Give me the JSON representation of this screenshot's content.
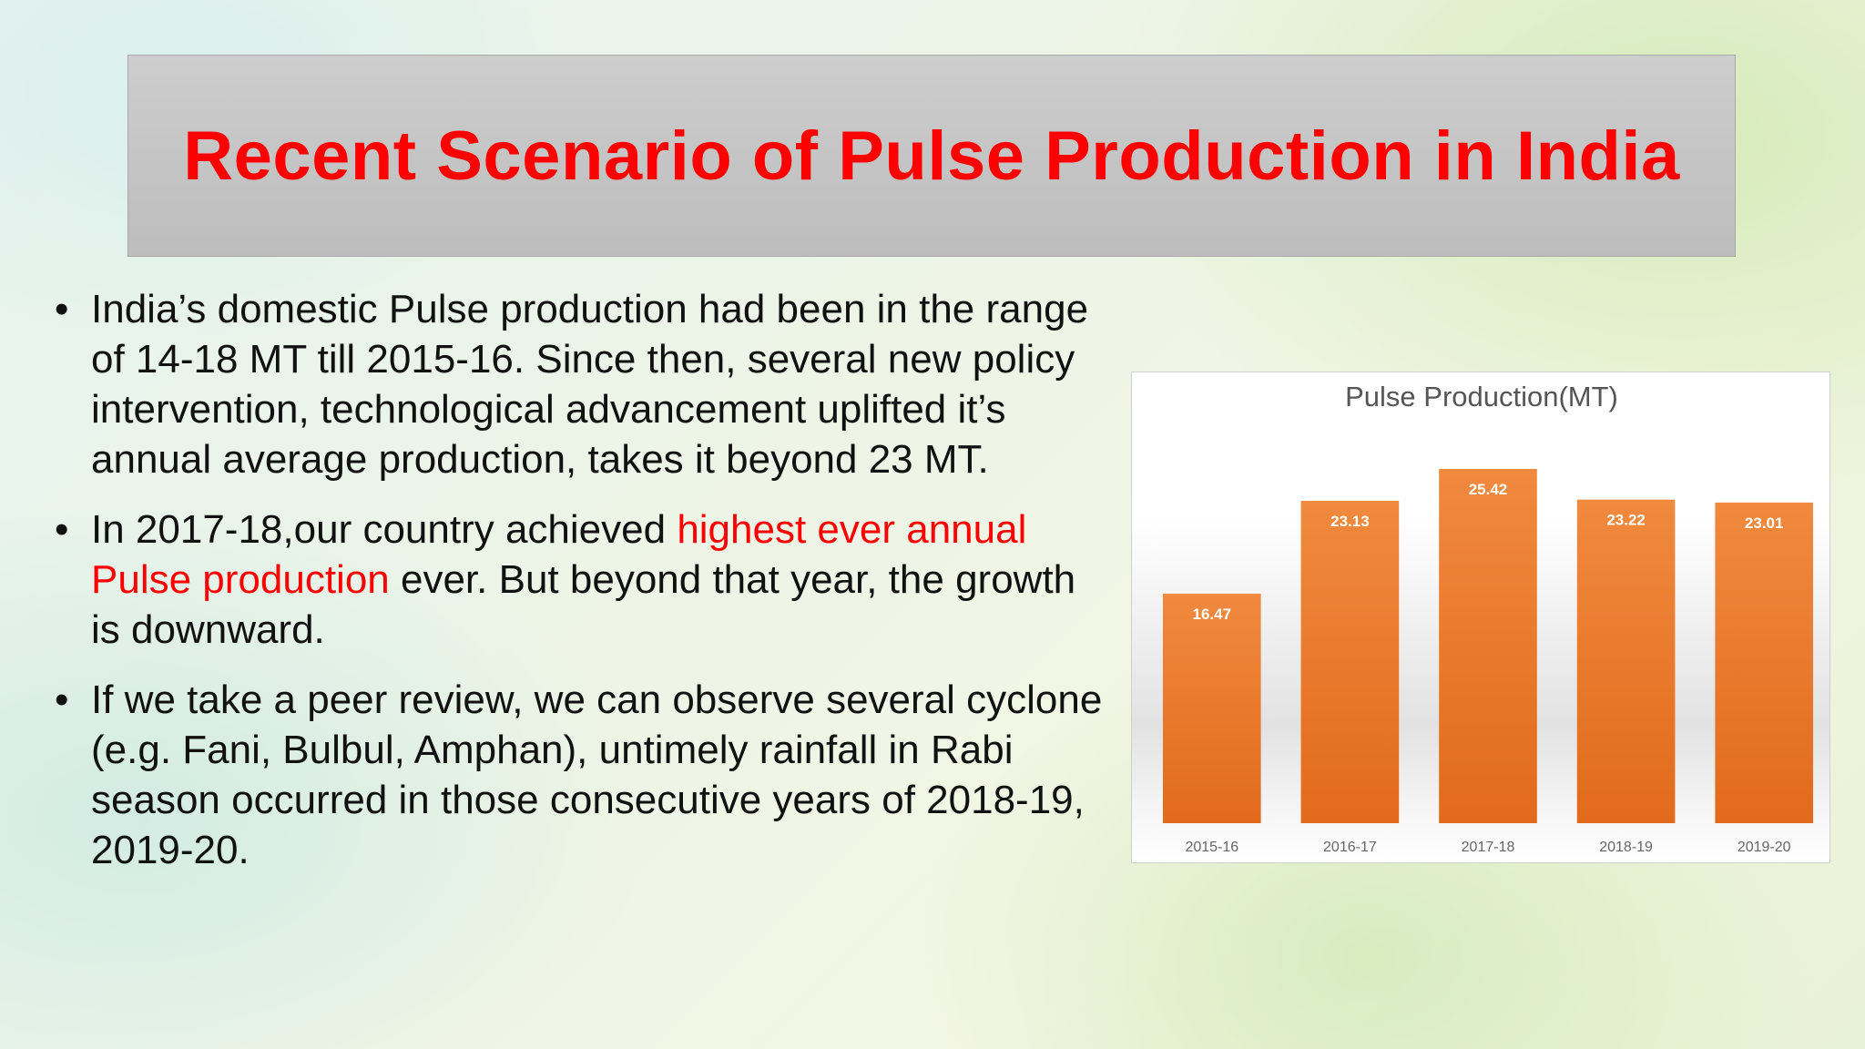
{
  "slide": {
    "title": "Recent Scenario of Pulse Production in India",
    "bullets": [
      {
        "parts": [
          "India’s domestic Pulse production had been in the range of 14-18 MT till 2015-16. Since then, several new policy intervention, technological advancement uplifted it’s annual average production, takes it beyond 23 MT."
        ]
      },
      {
        "before": "In 2017-18,our country achieved ",
        "highlight": "highest ever annual Pulse production",
        "after": " ever. But beyond that year, the growth is downward."
      },
      {
        "parts": [
          "If we take a peer review, we can observe several cyclone (e.g. Fani, Bulbul, Amphan), untimely rainfall in Rabi season occurred in those consecutive years of 2018-19, 2019-20."
        ]
      }
    ],
    "colors": {
      "title": "#ff0000",
      "highlight": "#ff0000",
      "bar": "#ec7c30",
      "title_box": "#c4c4c4"
    }
  },
  "chart_data": {
    "type": "bar",
    "title": "Pulse Production(MT)",
    "categories": [
      "2015-16",
      "2016-17",
      "2017-18",
      "2018-19",
      "2019-20"
    ],
    "values": [
      16.47,
      23.13,
      25.42,
      23.22,
      23.01
    ],
    "ylim": [
      0,
      28
    ],
    "grid": false,
    "legend": "none"
  }
}
